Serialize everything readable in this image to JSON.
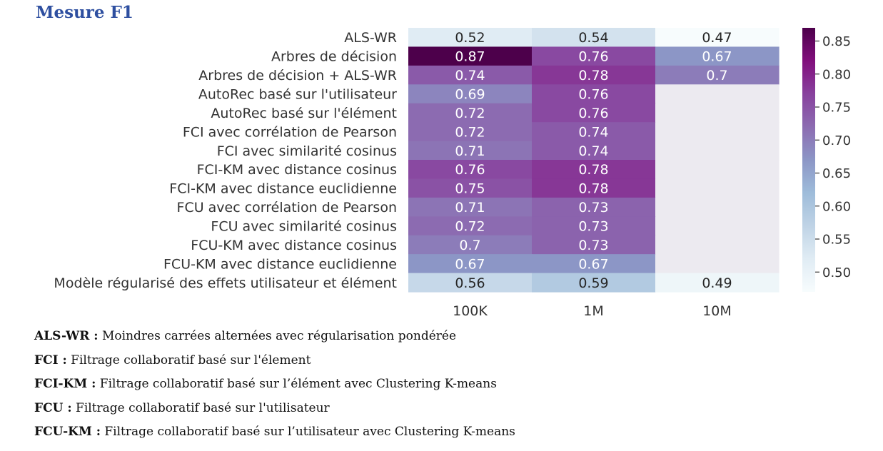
{
  "title": "Mesure F1",
  "chart_data": {
    "type": "heatmap",
    "title": "Mesure F1",
    "rows": [
      "ALS-WR",
      "Arbres de décision",
      "Arbres de décision + ALS-WR",
      "AutoRec basé sur l'utilisateur",
      "AutoRec basé sur l'élément",
      "FCI avec corrélation de Pearson",
      "FCI avec similarité cosinus",
      "FCI-KM avec distance cosinus",
      "FCI-KM avec distance euclidienne",
      "FCU avec corrélation de Pearson",
      "FCU avec similarité cosinus",
      "FCU-KM avec distance cosinus",
      "FCU-KM avec distance euclidienne",
      "Modèle régularisé des effets utilisateur et élément"
    ],
    "columns": [
      "100K",
      "1M",
      "10M"
    ],
    "values": [
      [
        0.52,
        0.54,
        0.47
      ],
      [
        0.87,
        0.76,
        0.67
      ],
      [
        0.74,
        0.78,
        0.7
      ],
      [
        0.69,
        0.76,
        null
      ],
      [
        0.72,
        0.76,
        null
      ],
      [
        0.72,
        0.74,
        null
      ],
      [
        0.71,
        0.74,
        null
      ],
      [
        0.76,
        0.78,
        null
      ],
      [
        0.75,
        0.78,
        null
      ],
      [
        0.71,
        0.73,
        null
      ],
      [
        0.72,
        0.73,
        null
      ],
      [
        0.7,
        0.73,
        null
      ],
      [
        0.67,
        0.67,
        null
      ],
      [
        0.56,
        0.59,
        0.49
      ]
    ],
    "colorbar": {
      "min": 0.47,
      "max": 0.87,
      "ticks": [
        "0.85",
        "0.80",
        "0.75",
        "0.70",
        "0.65",
        "0.60",
        "0.55",
        "0.50"
      ],
      "colormap": "BuPu"
    },
    "missing_color": "#eceaf0"
  },
  "notes": [
    {
      "abbr": "ALS-WR :",
      "text": " Moindres carrées alternées avec régularisation pondérée"
    },
    {
      "abbr": "FCI :",
      "text": " Filtrage collaboratif basé sur l'élement"
    },
    {
      "abbr": "FCI-KM :",
      "text": " Filtrage collaboratif basé sur l’élément avec Clustering K-means"
    },
    {
      "abbr": "FCU :",
      "text": " Filtrage collaboratif basé sur l'utilisateur"
    },
    {
      "abbr": "FCU-KM :",
      "text": " Filtrage collaboratif basé sur l’utilisateur avec Clustering K-means"
    }
  ]
}
